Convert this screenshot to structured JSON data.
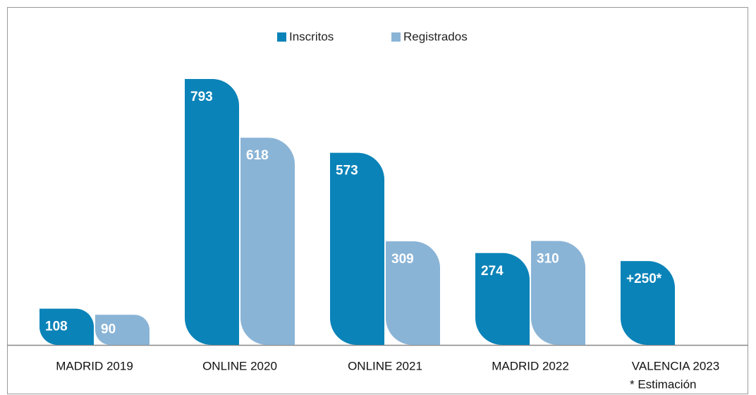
{
  "chart_data": {
    "type": "bar",
    "categories": [
      "MADRID 2019",
      "ONLINE 2020",
      "ONLINE 2021",
      "MADRID 2022",
      "VALENCIA 2023"
    ],
    "series": [
      {
        "name": "Inscritos",
        "color": "#0a83b8",
        "values": [
          108,
          793,
          573,
          274,
          250
        ],
        "value_labels": [
          "108",
          "793",
          "573",
          "274",
          "+250*"
        ]
      },
      {
        "name": "Registrados",
        "color": "#8ab4d6",
        "values": [
          90,
          618,
          309,
          310,
          null
        ]
      }
    ],
    "annotation": "* Estimación",
    "legend": "top"
  }
}
